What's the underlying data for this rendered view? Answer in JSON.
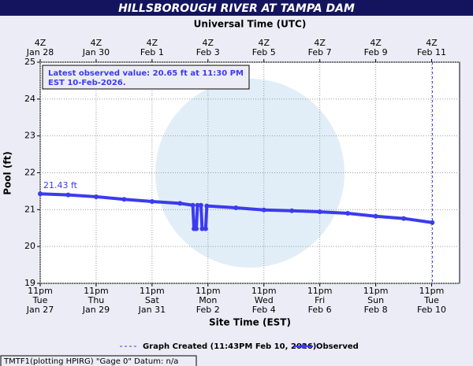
{
  "chart_data": {
    "type": "line",
    "title": "HILLSBOROUGH RIVER AT TAMPA DAM",
    "x_label": "Site Time (EST)",
    "x2_label": "Universal Time (UTC)",
    "y_label": "Pool (ft)",
    "xlim": [
      "Jan 27 23:00",
      "Feb 11 23:00"
    ],
    "ylim": [
      19,
      25
    ],
    "yticks": [
      19,
      20,
      21,
      22,
      23,
      24,
      25
    ],
    "xticks": [
      {
        "value": "Jan 27 23:00",
        "label": [
          "11pm",
          "Tue",
          "Jan 27"
        ]
      },
      {
        "value": "Jan 29 23:00",
        "label": [
          "11pm",
          "Thu",
          "Jan 29"
        ]
      },
      {
        "value": "Jan 31 23:00",
        "label": [
          "11pm",
          "Sat",
          "Jan 31"
        ]
      },
      {
        "value": "Feb 2 23:00",
        "label": [
          "11pm",
          "Mon",
          "Feb 2"
        ]
      },
      {
        "value": "Feb 4 23:00",
        "label": [
          "11pm",
          "Wed",
          "Feb 4"
        ]
      },
      {
        "value": "Feb 6 23:00",
        "label": [
          "11pm",
          "Fri",
          "Feb 6"
        ]
      },
      {
        "value": "Feb 8 23:00",
        "label": [
          "11pm",
          "Sun",
          "Feb 8"
        ]
      },
      {
        "value": "Feb 10 23:00",
        "label": [
          "11pm",
          "Tue",
          "Feb 10"
        ]
      }
    ],
    "x2ticks": [
      {
        "value": "Jan 27 23:00",
        "label": [
          "4Z",
          "Jan 28"
        ]
      },
      {
        "value": "Jan 29 23:00",
        "label": [
          "4Z",
          "Jan 30"
        ]
      },
      {
        "value": "Jan 31 23:00",
        "label": [
          "4Z",
          "Feb  1"
        ]
      },
      {
        "value": "Feb 2 23:00",
        "label": [
          "4Z",
          "Feb  3"
        ]
      },
      {
        "value": "Feb 4 23:00",
        "label": [
          "4Z",
          "Feb  5"
        ]
      },
      {
        "value": "Feb 6 23:00",
        "label": [
          "4Z",
          "Feb  7"
        ]
      },
      {
        "value": "Feb 8 23:00",
        "label": [
          "4Z",
          "Feb  9"
        ]
      },
      {
        "value": "Feb 10 23:00",
        "label": [
          "4Z",
          "Feb 11"
        ]
      }
    ],
    "grid": true,
    "x": [
      "Jan 27 23:00",
      "Jan 28 23:00",
      "Jan 29 23:00",
      "Jan 30 23:00",
      "Jan 31 23:00",
      "Feb 1 23:00",
      "Feb 2 10:00",
      "Feb 2 11:00",
      "Feb 2 13:00",
      "Feb 2 14:00",
      "Feb 2 17:00",
      "Feb 2 18:00",
      "Feb 2 21:00",
      "Feb 2 22:00",
      "Feb 3 23:00",
      "Feb 4 23:00",
      "Feb 5 23:00",
      "Feb 6 23:00",
      "Feb 7 23:00",
      "Feb 8 23:00",
      "Feb 9 23:00",
      "Feb 10 23:30"
    ],
    "series": [
      {
        "name": "Observed",
        "color": "#3b3bee",
        "values": [
          21.43,
          21.4,
          21.35,
          21.28,
          21.22,
          21.17,
          21.12,
          20.48,
          20.48,
          21.12,
          21.12,
          20.48,
          20.48,
          21.1,
          21.05,
          20.99,
          20.97,
          20.94,
          20.9,
          20.82,
          20.76,
          20.65
        ],
        "value_labels": [
          "21.43 ft",
          null,
          null,
          null,
          null,
          null,
          null,
          null,
          null,
          null,
          null,
          null,
          null,
          null,
          null,
          null,
          null,
          null,
          null,
          null,
          null,
          null
        ]
      }
    ],
    "annotation": [
      "Latest observed value: 20.65 ft at 11:30 PM",
      "EST 10-Feb-2026."
    ],
    "created_line": {
      "x": "Feb 10 23:43",
      "label": "Graph Created (11:43PM Feb 10, 2026)",
      "color": "#3b3bee"
    },
    "footer": "TMTF1(plotting HPIRG) \"Gage 0\" Datum: n/a"
  }
}
